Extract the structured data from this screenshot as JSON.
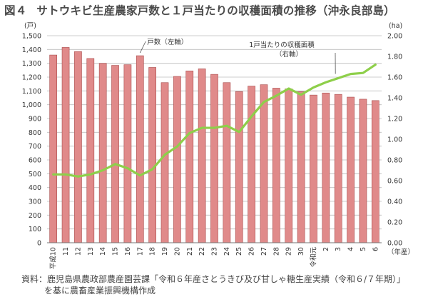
{
  "title": {
    "figure_label": "図４",
    "text": "サトウキビ生産農家戸数と１戸当たりの収穫面積の推移（沖永良部島）"
  },
  "source": {
    "line1": "資料：鹿児島県農政部農産園芸課「令和６年産さとうきび及び甘しゃ糖生産実績（令和６/７年期）」",
    "line2": "を基に農畜産業振興機構作成"
  },
  "chart_data": {
    "type": "bar+line",
    "categories": [
      "平成10",
      "11",
      "12",
      "13",
      "14",
      "15",
      "16",
      "17",
      "18",
      "19",
      "20",
      "21",
      "22",
      "23",
      "24",
      "25",
      "26",
      "27",
      "28",
      "29",
      "30",
      "令和元",
      "2",
      "3",
      "4",
      "5",
      "6"
    ],
    "x_unit": "（年産）",
    "y_left": {
      "unit": "(戸)",
      "min": 0,
      "max": 1500,
      "step": 100
    },
    "y_right": {
      "unit": "(ha)",
      "min": 0,
      "max": 2.0,
      "step": 0.2
    },
    "series": [
      {
        "name": "戸数（左軸）",
        "type": "bar",
        "axis": "left",
        "color": "#e08a8a",
        "values": [
          1360,
          1415,
          1385,
          1335,
          1300,
          1285,
          1290,
          1355,
          1270,
          1160,
          1205,
          1245,
          1260,
          1220,
          1160,
          1095,
          1135,
          1145,
          1120,
          1115,
          1095,
          1070,
          1085,
          1075,
          1055,
          1040,
          1030
        ]
      },
      {
        "name": "1戸当たりの収穫面積（右軸）",
        "type": "line",
        "axis": "right",
        "color": "#8ecf4a",
        "values": [
          0.66,
          0.66,
          0.64,
          0.66,
          0.7,
          0.76,
          0.72,
          0.65,
          0.71,
          0.85,
          0.93,
          1.06,
          1.11,
          1.11,
          1.13,
          1.07,
          1.22,
          1.36,
          1.42,
          1.49,
          1.43,
          1.5,
          1.55,
          1.59,
          1.63,
          1.64,
          1.72
        ]
      }
    ],
    "legend": {
      "bar_label": "戸数（左軸）",
      "line_label_1": "1戸当たりの収穫面積",
      "line_label_2": "（右軸）"
    }
  }
}
